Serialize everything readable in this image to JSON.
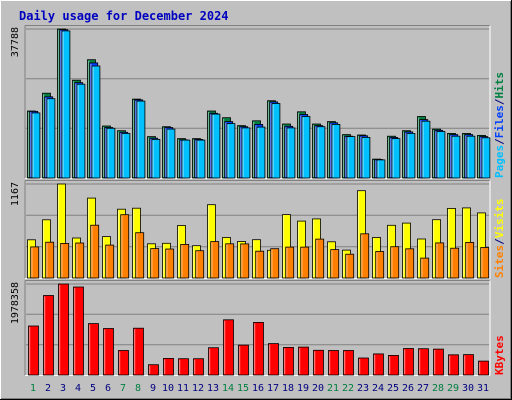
{
  "chart_data": {
    "type": "bar",
    "title": "Daily usage for December 2024",
    "categories": [
      "1",
      "2",
      "3",
      "4",
      "5",
      "6",
      "7",
      "8",
      "9",
      "10",
      "11",
      "12",
      "13",
      "14",
      "15",
      "16",
      "17",
      "18",
      "19",
      "20",
      "21",
      "22",
      "23",
      "24",
      "25",
      "26",
      "27",
      "28",
      "29",
      "30",
      "31"
    ],
    "weekend_days": [
      "1",
      "7",
      "8",
      "14",
      "15",
      "21",
      "22",
      "28",
      "29"
    ],
    "panels": [
      {
        "id": "hits",
        "max_label": "37788",
        "ymax": 37788,
        "legend": [
          {
            "text": "Pages",
            "color": "#00c0ff"
          },
          {
            "text": "/",
            "color": "#000080"
          },
          {
            "text": "Files",
            "color": "#0040ff"
          },
          {
            "text": "/",
            "color": "#000080"
          },
          {
            "text": "Hits",
            "color": "#008040"
          }
        ],
        "series": [
          {
            "name": "Hits",
            "color": "#008040",
            "values": [
              17000,
              21500,
              37788,
              24800,
              30000,
              13200,
              12000,
              20000,
              10500,
              13000,
              10000,
              10000,
              17000,
              15300,
              13300,
              14500,
              19600,
              13700,
              16800,
              13700,
              14300,
              11000,
              10900,
              4800,
              10600,
              12000,
              15600,
              12400,
              11300,
              11300,
              10800
            ]
          },
          {
            "name": "Files",
            "color": "#0040ff",
            "values": [
              16900,
              20600,
              37600,
              24200,
              29200,
              12800,
              11600,
              19800,
              10100,
              12800,
              9700,
              9800,
              16400,
              14300,
              13000,
              13600,
              19300,
              13100,
              16100,
              13300,
              14000,
              10600,
              10700,
              4700,
              10300,
              11700,
              14800,
              12100,
              11000,
              11000,
              10500
            ]
          },
          {
            "name": "Pages",
            "color": "#00c0ff",
            "values": [
              16500,
              20100,
              37300,
              23800,
              28400,
              12600,
              11300,
              19500,
              9800,
              12400,
              9600,
              9600,
              16200,
              13800,
              12700,
              12900,
              18900,
              12700,
              15600,
              13000,
              13600,
              10500,
              10300,
              4600,
              10000,
              11300,
              14400,
              11800,
              10600,
              10600,
              10200
            ]
          }
        ]
      },
      {
        "id": "visits",
        "max_label": "1167",
        "ymax": 1167,
        "legend": [
          {
            "text": "Sites",
            "color": "#ff8000"
          },
          {
            "text": "/",
            "color": "#000080"
          },
          {
            "text": "Visits",
            "color": "#ffff00"
          }
        ],
        "series": [
          {
            "name": "Visits",
            "color": "#ffff00",
            "values": [
              474,
              722,
              1167,
              496,
              992,
              514,
              854,
              866,
              425,
              431,
              652,
              401,
              910,
              503,
              453,
              475,
              344,
              787,
              706,
              734,
              449,
              346,
              1084,
              503,
              654,
              681,
              484,
              724,
              864,
              870,
              808
            ]
          },
          {
            "name": "Sites",
            "color": "#ff8000",
            "values": [
              386,
              444,
              429,
              435,
              655,
              409,
              786,
              563,
              365,
              360,
              417,
              339,
              452,
              424,
              423,
              333,
              364,
              383,
              383,
              483,
              353,
              295,
              549,
              329,
              388,
              363,
              247,
              436,
              370,
              442,
              379
            ]
          }
        ]
      },
      {
        "id": "kbytes",
        "max_label": "1978358",
        "ymax": 1978358,
        "legend": [
          {
            "text": "KBytes",
            "color": "#ff0000"
          }
        ],
        "series": [
          {
            "name": "KBytes",
            "color": "#ff0000",
            "values": [
              1065000,
              1728000,
              1978358,
              1913000,
              1118000,
              1010000,
              533000,
              1018000,
              225000,
              360000,
              354000,
              354000,
              593000,
              1201000,
              649000,
              1144000,
              683000,
              600000,
              606000,
              536000,
              533000,
              533000,
              369000,
              459000,
              427000,
              576000,
              571000,
              564000,
              440000,
              444000,
              303000
            ]
          }
        ]
      }
    ]
  }
}
